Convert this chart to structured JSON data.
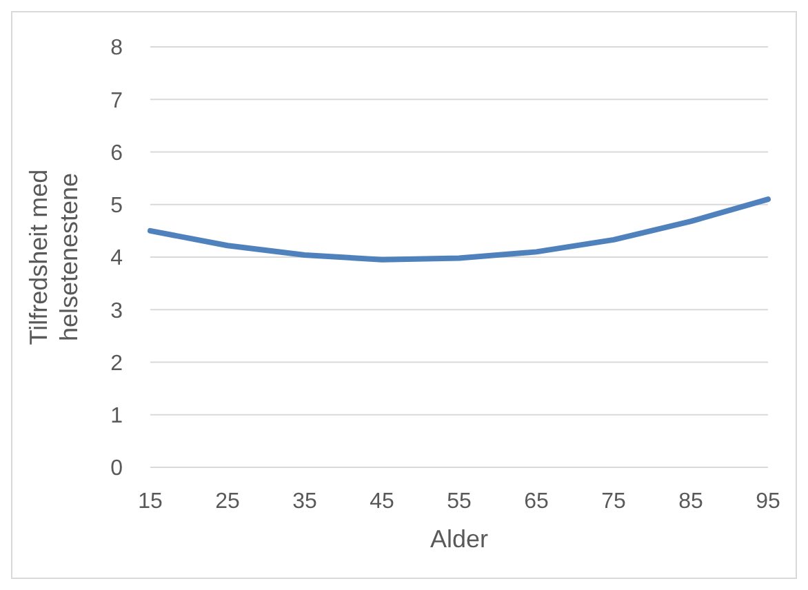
{
  "chart_data": {
    "type": "line",
    "xlabel": "Alder",
    "ylabel": "Tilfredsheit med helsetenestene",
    "categories": [
      "15",
      "25",
      "35",
      "45",
      "55",
      "65",
      "75",
      "85",
      "95"
    ],
    "series": [
      {
        "color": "#4f81bd",
        "values": [
          4.5,
          4.22,
          4.04,
          3.95,
          3.98,
          4.1,
          4.33,
          4.68,
          5.1
        ]
      }
    ],
    "ylim": [
      0,
      8
    ],
    "yticks": [
      0,
      1,
      2,
      3,
      4,
      5,
      6,
      7,
      8
    ],
    "grid": "y",
    "marker": "none",
    "line_style": "solid"
  }
}
